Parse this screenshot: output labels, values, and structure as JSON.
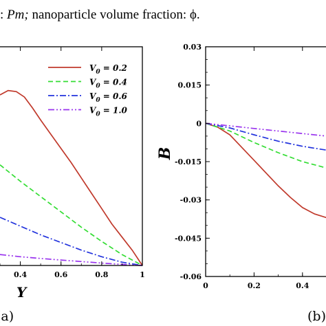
{
  "caption": {
    "prefix": ":",
    "pm": "Pm;",
    "rest": "nanoparticle volume fraction: ϕ."
  },
  "chart_data": [
    {
      "type": "line",
      "panel_label": "(a)",
      "xlabel": "Y",
      "ylabel": "",
      "xlim": [
        0.3,
        1.0
      ],
      "x_ticks": [
        0.4,
        0.6,
        0.8,
        1.0
      ],
      "x_tick_labels": [
        "0.4",
        "0.6",
        "0.8",
        "1"
      ],
      "ylim": [
        0,
        1
      ],
      "grid": false,
      "legend_position": "top-right",
      "series": [
        {
          "name": "V0 = 0.2",
          "color": "#c0392b",
          "dash": "solid",
          "x": [
            0.3,
            0.34,
            0.38,
            0.42,
            0.46,
            0.5,
            0.55,
            0.6,
            0.65,
            0.7,
            0.75,
            0.8,
            0.85,
            0.9,
            0.95,
            1.0
          ],
          "y": [
            0.78,
            0.8,
            0.795,
            0.77,
            0.72,
            0.665,
            0.6,
            0.535,
            0.47,
            0.4,
            0.33,
            0.26,
            0.19,
            0.13,
            0.07,
            0.0
          ]
        },
        {
          "name": "V0 = 0.4",
          "color": "#33dd33",
          "dash": "dashed",
          "x": [
            0.3,
            0.4,
            0.5,
            0.6,
            0.7,
            0.8,
            0.9,
            1.0
          ],
          "y": [
            0.46,
            0.385,
            0.315,
            0.245,
            0.175,
            0.11,
            0.05,
            0.0
          ]
        },
        {
          "name": "V0 = 0.6",
          "color": "#2233dd",
          "dash": "dashdot",
          "x": [
            0.3,
            0.4,
            0.5,
            0.6,
            0.7,
            0.8,
            0.9,
            1.0
          ],
          "y": [
            0.22,
            0.18,
            0.14,
            0.105,
            0.07,
            0.04,
            0.015,
            0.0
          ]
        },
        {
          "name": "V0 = 1.0",
          "color": "#9933ee",
          "dash": "dashdotdot",
          "x": [
            0.3,
            0.4,
            0.5,
            0.6,
            0.7,
            0.8,
            0.9,
            1.0
          ],
          "y": [
            0.05,
            0.04,
            0.032,
            0.025,
            0.018,
            0.011,
            0.005,
            0.0
          ]
        }
      ]
    },
    {
      "type": "line",
      "panel_label": "(b)",
      "xlabel": "",
      "ylabel": "B",
      "xlim": [
        0,
        0.5
      ],
      "x_ticks": [
        0,
        0.2,
        0.4
      ],
      "x_tick_labels": [
        "0",
        "0.2",
        "0.4"
      ],
      "ylim": [
        -0.06,
        0.03
      ],
      "y_ticks": [
        0.03,
        0.015,
        0,
        -0.015,
        -0.03,
        -0.045,
        -0.06
      ],
      "y_tick_labels": [
        "0.03",
        "0.015",
        "0",
        "-0.015",
        "-0.03",
        "-0.045",
        "-0.06"
      ],
      "grid": false,
      "series": [
        {
          "name": "V0 = 0.2",
          "color": "#c0392b",
          "dash": "solid",
          "x": [
            0,
            0.05,
            0.1,
            0.15,
            0.2,
            0.25,
            0.3,
            0.35,
            0.4,
            0.45,
            0.5
          ],
          "y": [
            0,
            -0.0015,
            -0.0045,
            -0.0095,
            -0.0145,
            -0.0195,
            -0.0245,
            -0.029,
            -0.033,
            -0.0355,
            -0.037
          ]
        },
        {
          "name": "V0 = 0.4",
          "color": "#33dd33",
          "dash": "dashed",
          "x": [
            0,
            0.1,
            0.2,
            0.3,
            0.4,
            0.5
          ],
          "y": [
            0,
            -0.003,
            -0.0075,
            -0.0115,
            -0.015,
            -0.0175
          ]
        },
        {
          "name": "V0 = 0.6",
          "color": "#2233dd",
          "dash": "dashdot",
          "x": [
            0,
            0.1,
            0.2,
            0.3,
            0.4,
            0.5
          ],
          "y": [
            0,
            -0.0018,
            -0.0045,
            -0.007,
            -0.009,
            -0.0105
          ]
        },
        {
          "name": "V0 = 1.0",
          "color": "#9933ee",
          "dash": "dashdotdot",
          "x": [
            0,
            0.1,
            0.2,
            0.3,
            0.4,
            0.5
          ],
          "y": [
            0,
            -0.001,
            -0.002,
            -0.003,
            -0.004,
            -0.005
          ]
        }
      ]
    }
  ]
}
